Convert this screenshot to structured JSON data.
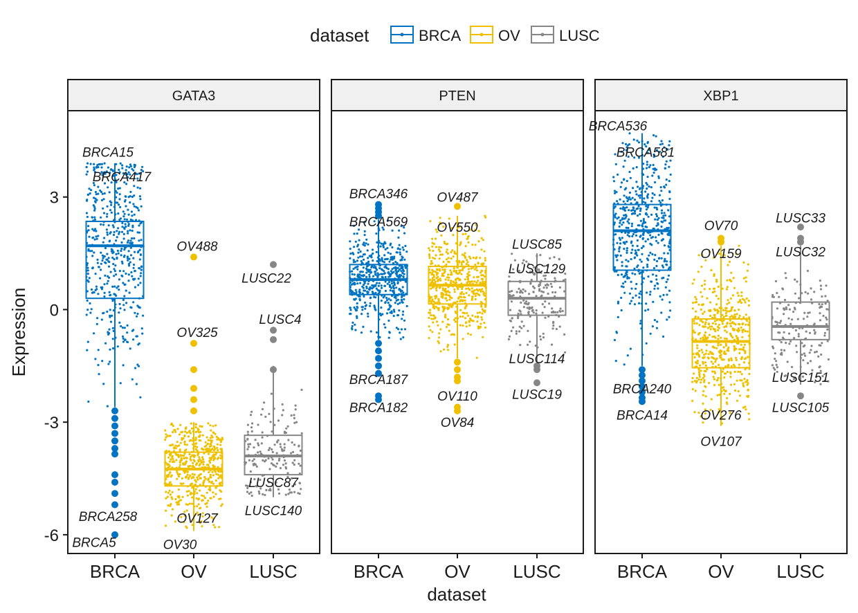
{
  "colors": {
    "BRCA": "#0073C2",
    "OV": "#EFC000",
    "LUSC": "#868686"
  },
  "chart_data": {
    "type": "boxplot",
    "facets": [
      "GATA3",
      "PTEN",
      "XBP1"
    ],
    "categories": [
      "BRCA",
      "OV",
      "LUSC"
    ],
    "xlabel": "dataset",
    "ylabel": "Expression",
    "ylim": [
      -6.5,
      5.3
    ],
    "yticks": [
      3,
      0,
      -3,
      -6
    ],
    "ytick_labels": [
      "3",
      "0",
      "-3",
      "-6"
    ],
    "legend": {
      "title": "dataset",
      "position": "top",
      "entries": [
        "BRCA",
        "OV",
        "LUSC"
      ]
    },
    "panels": [
      {
        "gene": "GATA3",
        "boxes": [
          {
            "group": "BRCA",
            "q1": 0.3,
            "median": 1.7,
            "q3": 2.35,
            "whisker_low": -2.6,
            "whisker_high": 3.9,
            "outliers": [
              -2.7,
              -2.9,
              -3.1,
              -3.3,
              -3.5,
              -3.7,
              -3.85,
              -4.4,
              -4.6,
              -4.9,
              -5.2,
              -6.0
            ]
          },
          {
            "group": "OV",
            "q1": -4.7,
            "median": -4.25,
            "q3": -3.8,
            "whisker_low": -5.9,
            "whisker_high": -3.0,
            "outliers": [
              1.4,
              -0.9,
              -1.6,
              -2.1,
              -2.4,
              -2.7
            ]
          },
          {
            "group": "LUSC",
            "q1": -4.4,
            "median": -3.9,
            "q3": -3.35,
            "whisker_low": -5.0,
            "whisker_high": -1.5,
            "outliers": [
              1.2,
              -0.55,
              -0.8,
              -1.6
            ]
          }
        ],
        "labels": [
          {
            "text": "BRCA15",
            "group": "BRCA",
            "y": 4.2,
            "dx": -0.1
          },
          {
            "text": "BRCA417",
            "group": "BRCA",
            "y": 3.55,
            "dx": 0.1
          },
          {
            "text": "BRCA258",
            "group": "BRCA",
            "y": -5.5,
            "dx": -0.1
          },
          {
            "text": "BRCA5",
            "group": "BRCA",
            "y": -6.2,
            "dx": -0.3
          },
          {
            "text": "OV488",
            "group": "OV",
            "y": 1.7,
            "dx": 0.05
          },
          {
            "text": "OV325",
            "group": "OV",
            "y": -0.6,
            "dx": 0.05
          },
          {
            "text": "OV127",
            "group": "OV",
            "y": -5.55,
            "dx": 0.05
          },
          {
            "text": "OV30",
            "group": "OV",
            "y": -6.25,
            "dx": -0.2
          },
          {
            "text": "LUSC22",
            "group": "LUSC",
            "y": 0.85,
            "dx": -0.1
          },
          {
            "text": "LUSC4",
            "group": "LUSC",
            "y": -0.25,
            "dx": 0.1
          },
          {
            "text": "LUSC87",
            "group": "LUSC",
            "y": -4.6,
            "dx": 0.0
          },
          {
            "text": "LUSC140",
            "group": "LUSC",
            "y": -5.35,
            "dx": 0.0
          }
        ]
      },
      {
        "gene": "PTEN",
        "boxes": [
          {
            "group": "BRCA",
            "q1": 0.4,
            "median": 0.8,
            "q3": 1.2,
            "whisker_low": -0.8,
            "whisker_high": 2.4,
            "outliers": [
              2.5,
              2.6,
              2.7,
              2.8,
              -0.9,
              -1.1,
              -1.3,
              -1.5,
              -1.7,
              -2.3,
              -2.4
            ]
          },
          {
            "group": "OV",
            "q1": 0.15,
            "median": 0.65,
            "q3": 1.15,
            "whisker_low": -1.3,
            "whisker_high": 2.5,
            "outliers": [
              2.75,
              -1.4,
              -1.6,
              -1.8,
              -1.9,
              -2.6,
              -2.7
            ]
          },
          {
            "group": "LUSC",
            "q1": -0.15,
            "median": 0.3,
            "q3": 0.75,
            "whisker_low": -1.4,
            "whisker_high": 1.5,
            "outliers": [
              -1.5,
              -1.6,
              -1.95
            ]
          }
        ],
        "labels": [
          {
            "text": "BRCA346",
            "group": "BRCA",
            "y": 3.1,
            "dx": 0.0
          },
          {
            "text": "BRCA569",
            "group": "BRCA",
            "y": 2.35,
            "dx": 0.0
          },
          {
            "text": "BRCA187",
            "group": "BRCA",
            "y": -1.85,
            "dx": 0.0
          },
          {
            "text": "BRCA182",
            "group": "BRCA",
            "y": -2.6,
            "dx": 0.0
          },
          {
            "text": "OV487",
            "group": "OV",
            "y": 3.0,
            "dx": 0.0
          },
          {
            "text": "OV550",
            "group": "OV",
            "y": 2.2,
            "dx": 0.0
          },
          {
            "text": "OV110",
            "group": "OV",
            "y": -2.3,
            "dx": 0.0
          },
          {
            "text": "OV84",
            "group": "OV",
            "y": -3.0,
            "dx": 0.0
          },
          {
            "text": "LUSC85",
            "group": "LUSC",
            "y": 1.75,
            "dx": 0.0
          },
          {
            "text": "LUSC129",
            "group": "LUSC",
            "y": 1.1,
            "dx": 0.0
          },
          {
            "text": "LUSC114",
            "group": "LUSC",
            "y": -1.3,
            "dx": 0.0
          },
          {
            "text": "LUSC19",
            "group": "LUSC",
            "y": -2.25,
            "dx": 0.0
          }
        ]
      },
      {
        "gene": "XBP1",
        "boxes": [
          {
            "group": "BRCA",
            "q1": 1.05,
            "median": 2.1,
            "q3": 2.8,
            "whisker_low": -1.5,
            "whisker_high": 4.7,
            "outliers": [
              -1.6,
              -1.75,
              -1.9,
              -2.05,
              -2.2,
              -2.35,
              -2.45
            ]
          },
          {
            "group": "OV",
            "q1": -1.55,
            "median": -0.85,
            "q3": -0.25,
            "whisker_low": -3.1,
            "whisker_high": 1.7,
            "outliers": [
              1.8,
              1.9
            ]
          },
          {
            "group": "LUSC",
            "q1": -0.8,
            "median": -0.45,
            "q3": 0.2,
            "whisker_low": -2.0,
            "whisker_high": 1.7,
            "outliers": [
              1.8,
              1.9,
              2.2,
              -2.3
            ]
          }
        ],
        "labels": [
          {
            "text": "BRCA536",
            "group": "BRCA",
            "y": 4.9,
            "dx": -0.35
          },
          {
            "text": "BRCA581",
            "group": "BRCA",
            "y": 4.2,
            "dx": 0.05
          },
          {
            "text": "BRCA240",
            "group": "BRCA",
            "y": -2.1,
            "dx": 0.0
          },
          {
            "text": "BRCA14",
            "group": "BRCA",
            "y": -2.8,
            "dx": 0.0
          },
          {
            "text": "OV70",
            "group": "OV",
            "y": 2.25,
            "dx": 0.0
          },
          {
            "text": "OV159",
            "group": "OV",
            "y": 1.5,
            "dx": 0.0
          },
          {
            "text": "OV276",
            "group": "OV",
            "y": -2.8,
            "dx": 0.0
          },
          {
            "text": "OV107",
            "group": "OV",
            "y": -3.5,
            "dx": 0.0
          },
          {
            "text": "LUSC33",
            "group": "LUSC",
            "y": 2.45,
            "dx": 0.0
          },
          {
            "text": "LUSC32",
            "group": "LUSC",
            "y": 1.55,
            "dx": 0.0
          },
          {
            "text": "LUSC151",
            "group": "LUSC",
            "y": -1.8,
            "dx": 0.0
          },
          {
            "text": "LUSC105",
            "group": "LUSC",
            "y": -2.6,
            "dx": 0.0
          }
        ]
      }
    ]
  }
}
